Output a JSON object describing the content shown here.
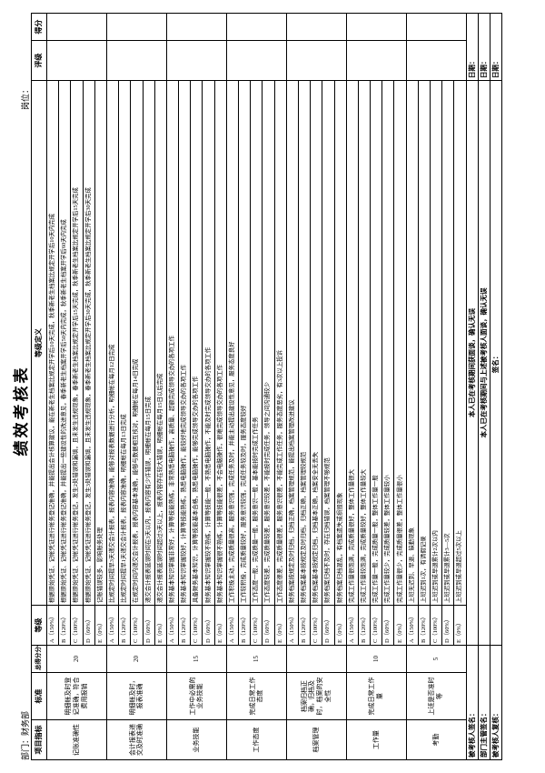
{
  "header": {
    "department": "部门：财务部",
    "title": "绩效考核表",
    "position": "岗位："
  },
  "columns": {
    "item": "项目指标",
    "standard": "标准",
    "weight": "总得分分值",
    "grade": "等级",
    "definition": "等级定义",
    "rating": "评级",
    "score": "得分"
  },
  "rows": [
    {
      "item": "记账准确性",
      "standard": "明细帐及时登记准确，符合费用报销",
      "weight": "20",
      "levels": [
        {
          "grade": "A（150%）",
          "definition": "根据原始凭证、记帐凭证进行帐务登记准确，并能提出会计核算建议，能在新老生档案比规定开学后10天完成，秋季新老生档案比规定开学后10天内完成"
        },
        {
          "grade": "B（120%）",
          "definition": "根据原始凭证、记帐凭证进行帐务登记准确，并能提出一些建设性的改进意见，春季新老生档案开学后50天内完成，秋季新老生档案开学后60天内完成"
        },
        {
          "grade": "C（100%）",
          "definition": "根据原始凭证、记帐凭证进行帐务登记，发生2处错误和漏填，且未发生违规现象，春季新老生档案比规定开学后15天完成，秋季新老生档案比规定开学后15天完成"
        },
        {
          "grade": "D（60%）",
          "definition": "根据原始凭证、记帐凭证进行帐务登记，发生3处错误和漏填，且未发生违规现象，春季新老生档案比规定开学后30天完成，秋季新老生档案比规定开学后30天完成"
        },
        {
          "grade": "E（0%）",
          "definition": "记账错误较多，影响账务处理"
        }
      ]
    },
    {
      "item": "会计报表递交及时准确",
      "standard": "明细帐及时，报表准确",
      "weight": "20",
      "levels": [
        {
          "grade": "A（150%）",
          "definition": "比规定时间提早3天递交会计报表，报表内容准确，能够对报表数据进行分析，明细帐在每月12日完成"
        },
        {
          "grade": "B（120%）",
          "definition": "比规定时间提早1天递交会计报表，报表内容准确，明细帐在每月13日完成"
        },
        {
          "grade": "C（100%）",
          "definition": "在规定时间内递交会计报表，报表内容基本准确，能够与数据相互核对，明细帐在每月14日完成"
        },
        {
          "grade": "D（60%）",
          "definition": "递交会计报表延误时间在3天以内，报表内容有少许错误，明细帐在每月15日完成"
        },
        {
          "grade": "E（0%）",
          "definition": "递交会计报表延误时间超过3天以上，报表内容存在较大错误，明细帐在每月15日以后完成"
        }
      ]
    },
    {
      "item": "业务技能",
      "standard": "工作中必需的业务技能",
      "weight": "15",
      "levels": [
        {
          "grade": "A（150%）",
          "definition": "财务基本知识掌握非常好，计算等技能熟练，非常熟悉电脑操作，高质量、超额完成领导交办的各项工作"
        },
        {
          "grade": "B（120%）",
          "definition": "财务基本知识掌握较好，计算等技能熟练，熟悉电脑操作，能较好地完成领导交办的各项工作"
        },
        {
          "grade": "C（100%）",
          "definition": "具备财务基本知识，计算等技能基本合格，熟悉电脑操作，能够完成领导交办的各项工作"
        },
        {
          "grade": "D（60%）",
          "definition": "财务基本知识掌握较不熟练，计算等技能一般，不熟悉电脑操作，不能及时完成领导交办的各项工作"
        },
        {
          "grade": "E（0%）",
          "definition": "财务基本知识掌握很不熟练，计算等技能很差，不会电脑操作，很难完成领导交办的各项工作"
        }
      ]
    },
    {
      "item": "工作态度",
      "standard": "完成日常工作态度",
      "weight": "15",
      "levels": [
        {
          "grade": "A（150%）",
          "definition": "工作积极主动，完成质量很高，服务意识强，完成任务及时，并能主动提出建设性意见，服务态度良好"
        },
        {
          "grade": "B（120%）",
          "definition": "工作较积极，完成质量较好，服务意识较强，完成任务较及时，服务态度较好"
        },
        {
          "grade": "C（100%）",
          "definition": "工作态度一般，完成质量一般，服务意识一般，基本能按时完成工作任务"
        },
        {
          "grade": "D（60%）",
          "definition": "工作态度较差，完成质量较差，服务意识较差，不能按时完成任务，领导之间沟通较少"
        },
        {
          "grade": "E（0%）",
          "definition": "工作态度很差，完成质量很差，服务意识很差，不能完成工作任务，服务态度恶劣，有3次以上投诉"
        }
      ]
    },
    {
      "item": "档案管理",
      "standard": "档案归档正确，归档及时，档案的安全性",
      "weight": "",
      "levels": [
        {
          "grade": "A（150%）",
          "definition": "财务档案按规定及时归档，归档正确，档案管理规范，能提出档案管理改进建议"
        },
        {
          "grade": "B（120%）",
          "definition": "财务档案基本按规定及时归档，归档正确，档案管理较规范"
        },
        {
          "grade": "C（100%）",
          "definition": "财务档案基本按规定归档，归档基本正确，档案安全无丢失"
        },
        {
          "grade": "D（60%）",
          "definition": "财务档案归档不及时，存在归档错误，档案管理不够规范"
        },
        {
          "grade": "E（0%）",
          "definition": "财务档案归档混乱，有档案遗失或损毁现象"
        }
      ]
    },
    {
      "item": "工作量",
      "standard": "完成日常工作量",
      "weight": "10",
      "levels": [
        {
          "grade": "A（150%）",
          "definition": "完成工作量很饱满，完成质量很好，整体工作量很大"
        },
        {
          "grade": "B（120%）",
          "definition": "完成工作量较饱满，完成质量较好，整体工作量较大"
        },
        {
          "grade": "C（100%）",
          "definition": "完成工作量一般，完成质量一般，整体工作量一般"
        },
        {
          "grade": "D（60%）",
          "definition": "完成工作量较少，完成质量较差，整体工作量较小"
        },
        {
          "grade": "E（0%）",
          "definition": "完成工作量很少，完成质量很差，整体工作量很小"
        }
      ]
    },
    {
      "item": "考勤",
      "standard": "上班是否准时等",
      "weight": "5",
      "levels": [
        {
          "grade": "A（150%）",
          "definition": "上班无迟到、早退、缺勤现象"
        },
        {
          "grade": "B（120%）",
          "definition": "上班迟到1次，有请假记录"
        },
        {
          "grade": "C（100%）",
          "definition": "上班迟到或早退累计2次以内"
        },
        {
          "grade": "D（60%）",
          "definition": "上班迟到或早退累计3—5次"
        },
        {
          "grade": "E（0%）",
          "definition": "上班迟到或早退超过5次以上"
        }
      ]
    }
  ],
  "footer": [
    {
      "sign": "被考核人签名：",
      "note": "本人已在考核期间获面谈，确认无误",
      "date": "日期："
    },
    {
      "sign": "部门主管签名：",
      "note": "本人已在考核期间与上述被考核人面谈，确认无误",
      "date": "日期："
    },
    {
      "sign": "被考核人复核：",
      "note": "签名：",
      "date": "日期："
    }
  ]
}
